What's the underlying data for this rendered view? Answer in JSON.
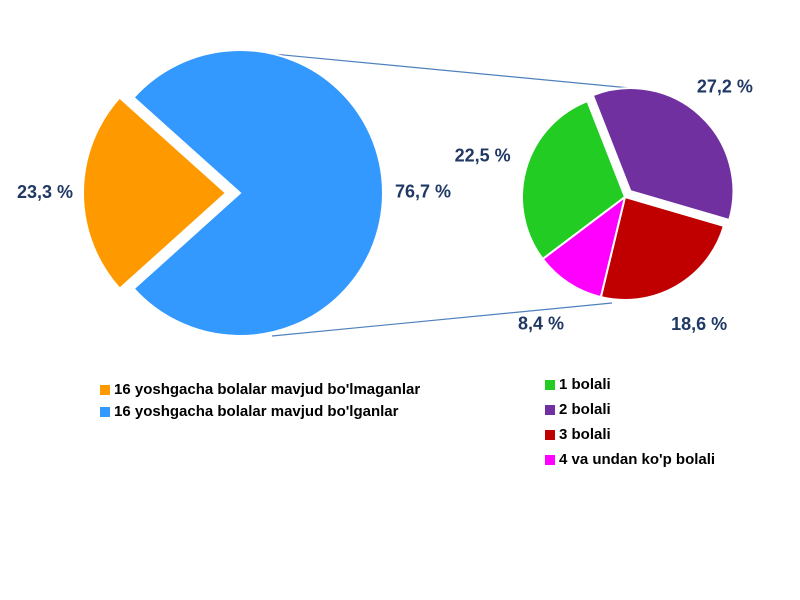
{
  "chart_data": [
    {
      "type": "pie",
      "categories": [
        "16 yoshgacha bolalar mavjud bo'lmaganlar",
        "16 yoshgacha bolalar mavjud bo'lganlar"
      ],
      "values": [
        23.3,
        76.7
      ],
      "value_labels": [
        "23,3 %",
        "76,7 %"
      ],
      "colors": [
        "#ff9900",
        "#3399ff"
      ]
    },
    {
      "type": "pie",
      "categories": [
        "1 bolali",
        "2 bolali",
        "3 bolali",
        "4 va undan ko'p bolali"
      ],
      "values": [
        22.5,
        27.2,
        18.6,
        8.4
      ],
      "value_labels": [
        "22,5 %",
        "27,2 %",
        "18,6 %",
        "8,4 %"
      ],
      "colors": [
        "#22cc22",
        "#7030a0",
        "#c00000",
        "#ff00ff"
      ]
    }
  ]
}
